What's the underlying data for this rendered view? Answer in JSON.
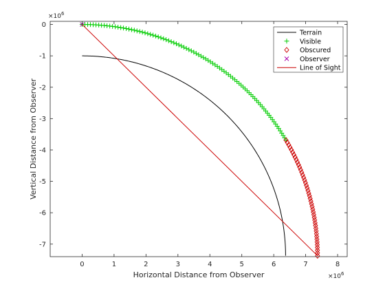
{
  "chart_data": {
    "type": "line",
    "title": "",
    "xlabel": "Horizontal Distance from Observer",
    "ylabel": "Vertical Distance from Observer",
    "x_exponent_label": "×10",
    "x_exponent_power": "6",
    "y_exponent_label": "×10",
    "y_exponent_power": "6",
    "xlim": [
      -1000000,
      8300000
    ],
    "ylim": [
      -7400000,
      100000
    ],
    "xticks": [
      0,
      1000000,
      2000000,
      3000000,
      4000000,
      5000000,
      6000000,
      7000000,
      8000000
    ],
    "xtick_labels": [
      "0",
      "1",
      "2",
      "3",
      "4",
      "5",
      "6",
      "7",
      "8"
    ],
    "yticks": [
      0,
      -1000000,
      -2000000,
      -3000000,
      -4000000,
      -5000000,
      -6000000,
      -7000000
    ],
    "ytick_labels": [
      "0",
      "-1",
      "-2",
      "-3",
      "-4",
      "-5",
      "-6",
      "-7"
    ],
    "grid": false,
    "legend_position": "top-right",
    "series": [
      {
        "name": "Terrain",
        "type": "line",
        "color": "#000000",
        "center": [
          0,
          -7371000
        ],
        "radius": 6371000,
        "sweep_degrees": [
          0,
          90
        ]
      },
      {
        "name": "Visible",
        "type": "scatter",
        "marker": "plus",
        "color": "#00cc00",
        "center": [
          0,
          -7371000
        ],
        "radius": 7371000,
        "sweep_degrees": [
          0,
          60
        ],
        "point_count": 90
      },
      {
        "name": "Obscured",
        "type": "scatter",
        "marker": "diamond",
        "color": "#cc0000",
        "center": [
          0,
          -7371000
        ],
        "radius": 7371000,
        "sweep_degrees": [
          60,
          90
        ],
        "point_count": 45
      },
      {
        "name": "Observer",
        "type": "scatter",
        "marker": "x",
        "color": "#aa00aa",
        "x": [
          0
        ],
        "y": [
          0
        ]
      },
      {
        "name": "Line of Sight",
        "type": "line",
        "color": "#cc0000",
        "x": [
          0,
          7371000
        ],
        "y": [
          0,
          -7371000
        ]
      }
    ]
  }
}
